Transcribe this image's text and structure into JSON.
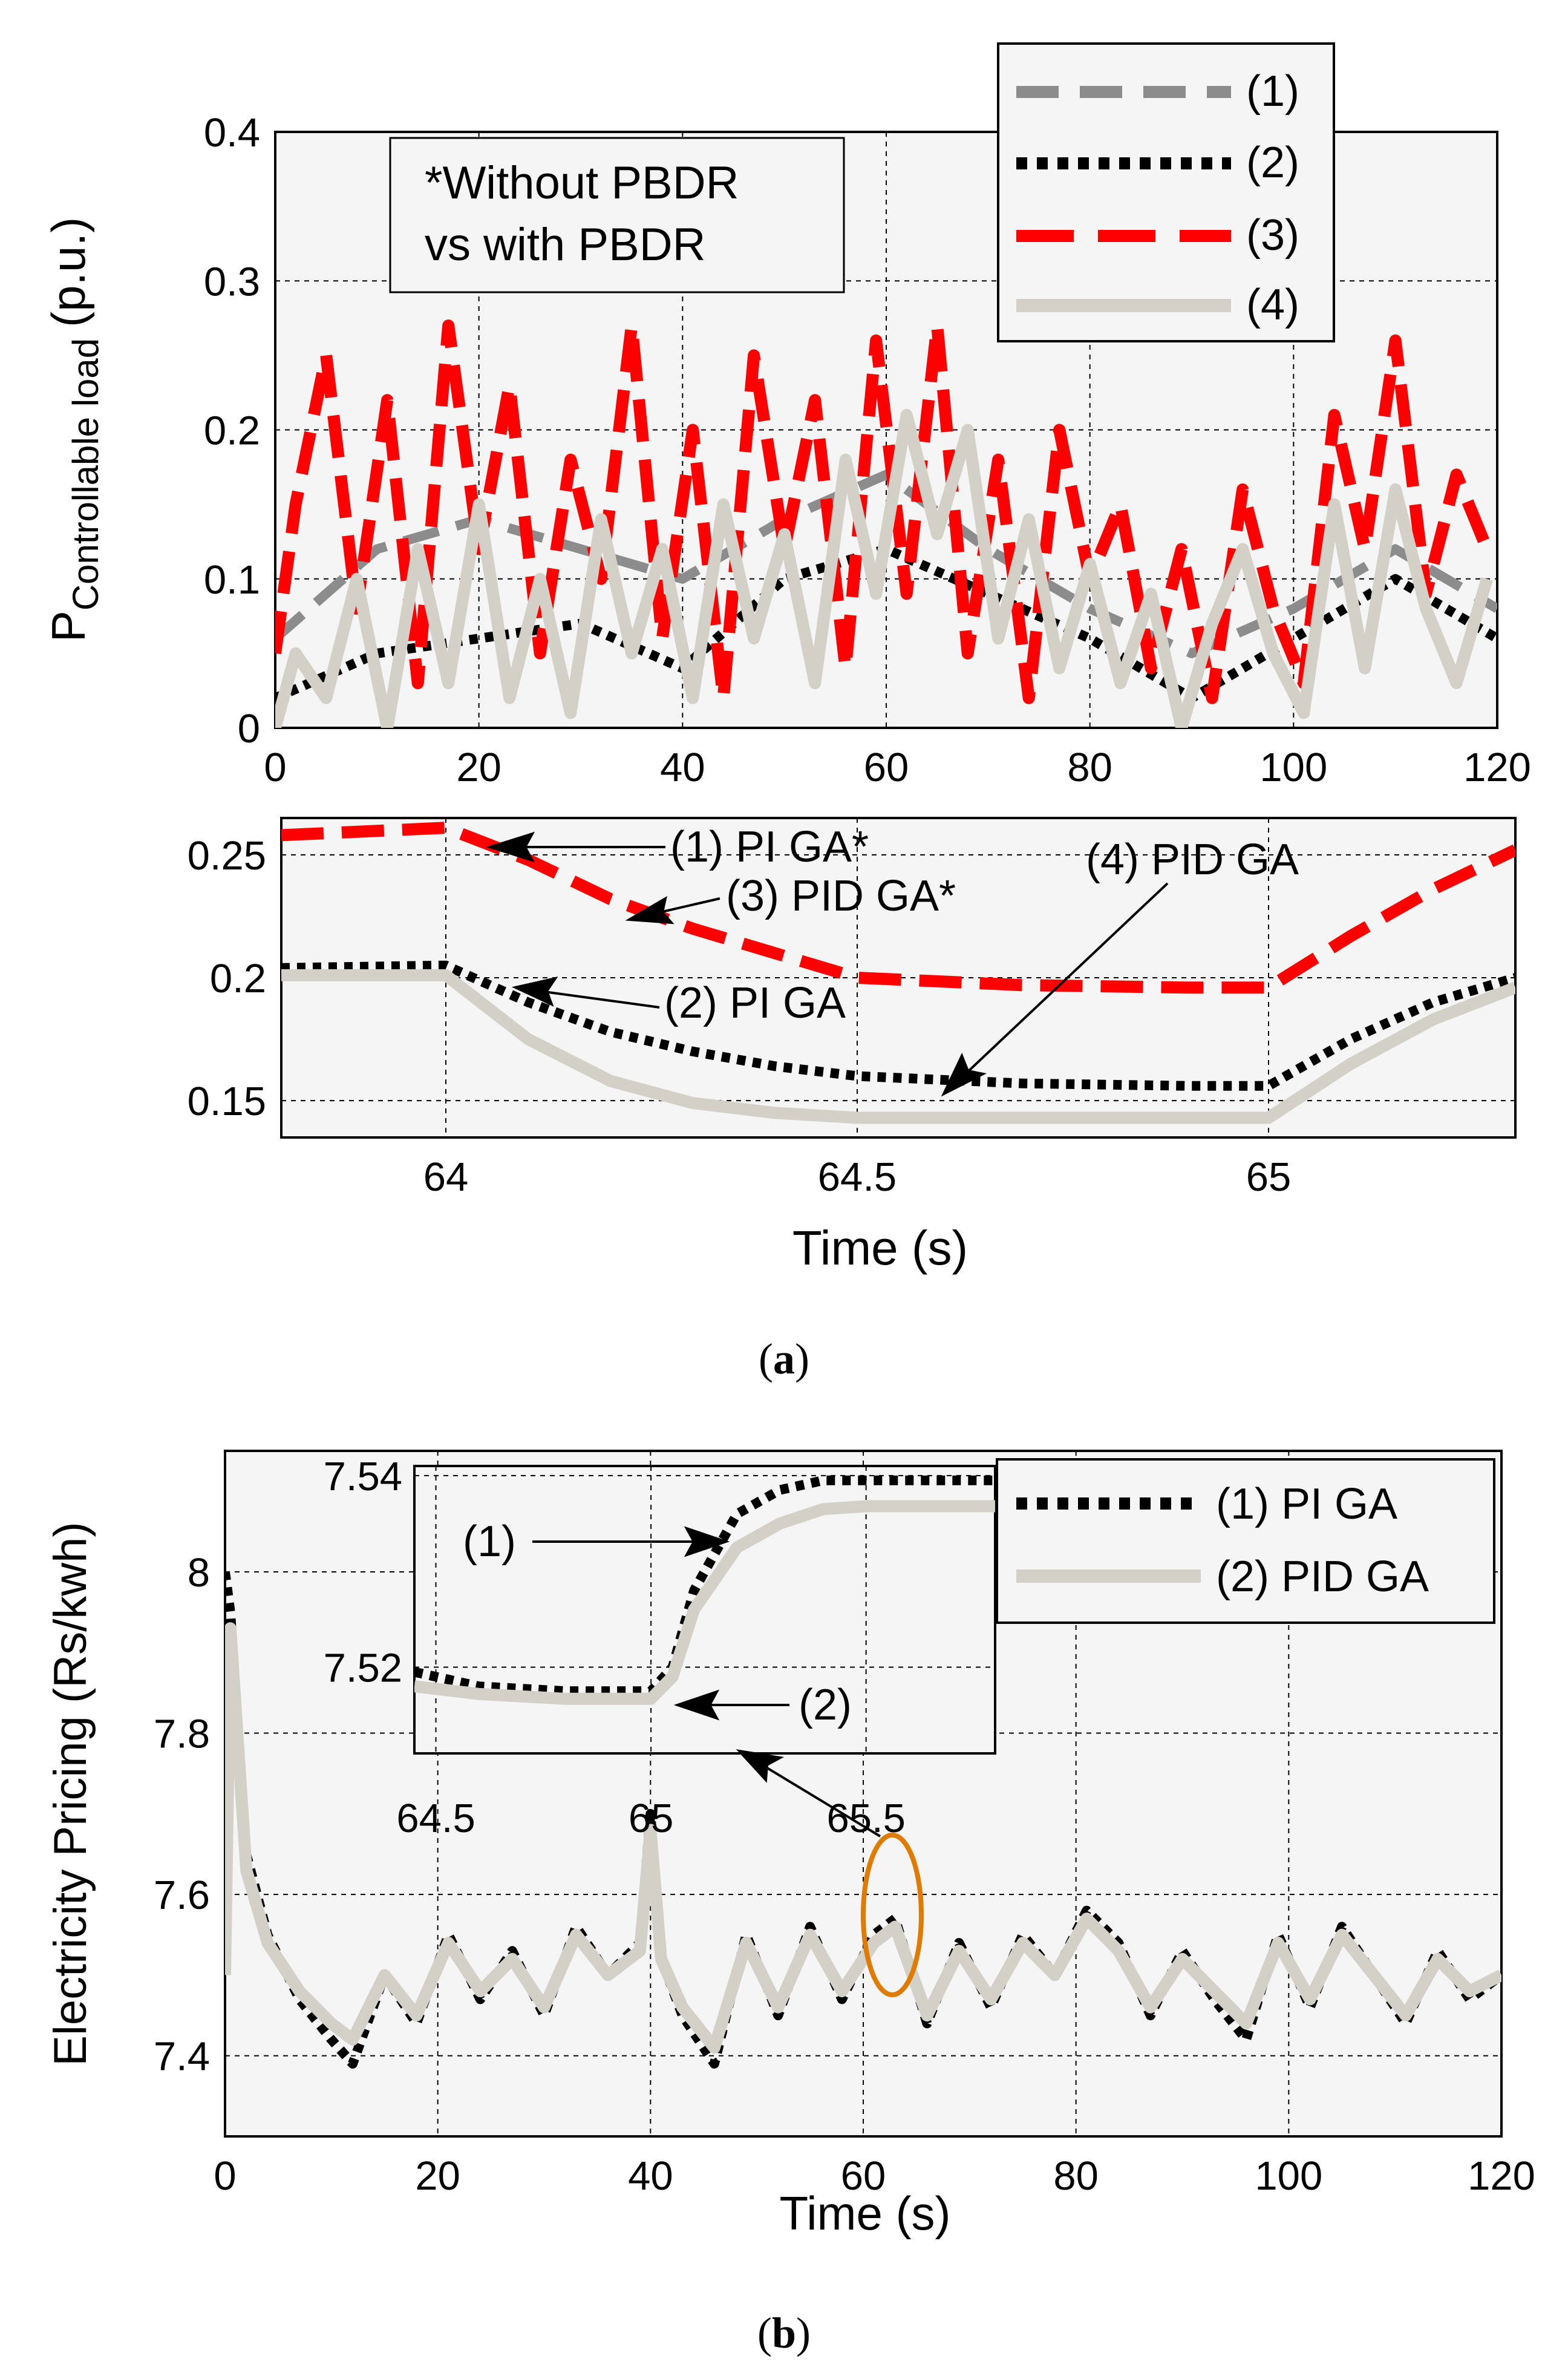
{
  "chart_data": [
    {
      "panel": "a-main",
      "type": "line",
      "title": "",
      "xlabel": "",
      "ylabel_main": "P",
      "ylabel_sub": "Controllable load",
      "ylabel_unit": "(p.u.)",
      "xlim": [
        0,
        120
      ],
      "ylim": [
        0,
        0.4
      ],
      "xticks": [
        "0",
        "20",
        "40",
        "60",
        "80",
        "100",
        "120"
      ],
      "xtick_values": [
        0,
        20,
        40,
        60,
        80,
        100,
        120
      ],
      "yticks": [
        "0",
        "0.1",
        "0.2",
        "0.3",
        "0.4"
      ],
      "ytick_values": [
        0,
        0.1,
        0.2,
        0.3,
        0.4
      ],
      "grid": true,
      "legend_position": "top-right",
      "legend": [
        "(1)",
        "(2)",
        "(3)",
        "(4)"
      ],
      "note_line1": "*Without PBDR",
      "note_line2": "vs with PBDR",
      "series": [
        {
          "name": "(1)",
          "color": "#8c8c8c",
          "style": "dashed",
          "x": [
            0,
            10,
            20,
            30,
            40,
            50,
            60,
            70,
            80,
            90,
            100,
            110,
            120
          ],
          "values": [
            0.06,
            0.12,
            0.14,
            0.12,
            0.1,
            0.14,
            0.17,
            0.12,
            0.08,
            0.05,
            0.08,
            0.12,
            0.08
          ]
        },
        {
          "name": "(2)",
          "color": "#000000",
          "style": "dotted",
          "x": [
            0,
            10,
            20,
            30,
            40,
            50,
            60,
            70,
            80,
            90,
            100,
            110,
            120
          ],
          "values": [
            0.02,
            0.05,
            0.06,
            0.07,
            0.04,
            0.1,
            0.12,
            0.09,
            0.06,
            0.02,
            0.06,
            0.1,
            0.06
          ]
        },
        {
          "name": "(3)",
          "color": "#ff0000",
          "style": "dashed",
          "x": [
            0,
            2,
            5,
            8,
            11,
            14,
            17,
            20,
            23,
            26,
            29,
            32,
            35,
            38,
            41,
            44,
            47,
            50,
            53,
            56,
            59,
            62,
            65,
            68,
            71,
            74,
            77,
            80,
            83,
            86,
            89,
            92,
            95,
            98,
            101,
            104,
            107,
            110,
            113,
            116,
            119
          ],
          "values": [
            0.05,
            0.15,
            0.25,
            0.08,
            0.22,
            0.03,
            0.27,
            0.12,
            0.23,
            0.05,
            0.18,
            0.1,
            0.27,
            0.06,
            0.2,
            0.02,
            0.25,
            0.12,
            0.22,
            0.04,
            0.26,
            0.09,
            0.27,
            0.05,
            0.18,
            0.02,
            0.2,
            0.1,
            0.15,
            0.04,
            0.12,
            0.02,
            0.16,
            0.08,
            0.03,
            0.21,
            0.12,
            0.26,
            0.09,
            0.17,
            0.12
          ]
        },
        {
          "name": "(4)",
          "color": "#d3d0c8",
          "style": "solid",
          "x": [
            0,
            2,
            5,
            8,
            11,
            14,
            17,
            20,
            23,
            26,
            29,
            32,
            35,
            38,
            41,
            44,
            47,
            50,
            53,
            56,
            59,
            62,
            65,
            68,
            71,
            74,
            77,
            80,
            83,
            86,
            89,
            92,
            95,
            98,
            101,
            104,
            107,
            110,
            113,
            116,
            119
          ],
          "values": [
            0.0,
            0.05,
            0.02,
            0.1,
            0.0,
            0.12,
            0.03,
            0.15,
            0.02,
            0.1,
            0.01,
            0.14,
            0.05,
            0.12,
            0.02,
            0.15,
            0.06,
            0.13,
            0.03,
            0.18,
            0.09,
            0.21,
            0.13,
            0.2,
            0.06,
            0.14,
            0.04,
            0.11,
            0.03,
            0.09,
            0.0,
            0.07,
            0.12,
            0.05,
            0.01,
            0.15,
            0.04,
            0.16,
            0.08,
            0.03,
            0.1
          ]
        }
      ]
    },
    {
      "panel": "a-zoom",
      "type": "line",
      "xlabel": "Time (s)",
      "ylabel": "",
      "xlim": [
        63.8,
        65.3
      ],
      "ylim": [
        0.135,
        0.265
      ],
      "xticks": [
        "64",
        "64.5",
        "65"
      ],
      "xtick_values": [
        64,
        64.5,
        65
      ],
      "yticks": [
        "0.15",
        "0.2",
        "0.25"
      ],
      "ytick_values": [
        0.15,
        0.2,
        0.25
      ],
      "grid": true,
      "annotations": [
        "(1) PI GA*",
        "(3) PID GA*",
        "(4) PID GA",
        "(2) PI GA"
      ],
      "series": [
        {
          "name": "(3) PID GA*",
          "color": "#ff0000",
          "style": "dashed",
          "x": [
            63.8,
            64.0,
            64.1,
            64.2,
            64.3,
            64.4,
            64.5,
            64.7,
            64.9,
            65.0,
            65.1,
            65.2,
            65.3
          ],
          "values": [
            0.258,
            0.261,
            0.248,
            0.232,
            0.22,
            0.21,
            0.2,
            0.197,
            0.196,
            0.196,
            0.217,
            0.236,
            0.252
          ]
        },
        {
          "name": "(2) PI GA",
          "color": "#000000",
          "style": "dotted",
          "x": [
            63.8,
            64.0,
            64.1,
            64.2,
            64.3,
            64.4,
            64.5,
            64.7,
            64.9,
            65.0,
            65.1,
            65.2,
            65.3
          ],
          "values": [
            0.204,
            0.205,
            0.19,
            0.178,
            0.17,
            0.164,
            0.16,
            0.157,
            0.156,
            0.156,
            0.175,
            0.19,
            0.2
          ]
        },
        {
          "name": "(4) PID GA",
          "color": "#d3d0c8",
          "style": "solid",
          "x": [
            63.8,
            64.0,
            64.1,
            64.2,
            64.3,
            64.4,
            64.5,
            64.7,
            64.9,
            65.0,
            65.1,
            65.2,
            65.3
          ],
          "values": [
            0.201,
            0.201,
            0.175,
            0.158,
            0.149,
            0.145,
            0.143,
            0.143,
            0.143,
            0.143,
            0.165,
            0.183,
            0.196
          ]
        }
      ]
    },
    {
      "panel": "b-main",
      "type": "line",
      "xlabel": "Time (s)",
      "ylabel": "Electricity Pricing (Rs/kwh)",
      "xlim": [
        0,
        120
      ],
      "ylim": [
        7.3,
        8.15
      ],
      "xticks": [
        "0",
        "20",
        "40",
        "60",
        "80",
        "100",
        "120"
      ],
      "xtick_values": [
        0,
        20,
        40,
        60,
        80,
        100,
        120
      ],
      "yticks": [
        "7.4",
        "7.6",
        "7.8",
        "8"
      ],
      "ytick_values": [
        7.4,
        7.6,
        7.8,
        8.0
      ],
      "grid": true,
      "legend_position": "top-right",
      "legend": [
        "(1) PI GA",
        "(2) PID GA"
      ],
      "series": [
        {
          "name": "(1) PI GA",
          "color": "#000000",
          "style": "dotted",
          "x": [
            0,
            0.5,
            2,
            4,
            7,
            10,
            12,
            15,
            18,
            21,
            24,
            27,
            30,
            33,
            36,
            39,
            40,
            41,
            43,
            46,
            49,
            52,
            55,
            58,
            61,
            63,
            66,
            69,
            72,
            75,
            78,
            81,
            84,
            87,
            90,
            93,
            96,
            99,
            102,
            105,
            108,
            111,
            114,
            117,
            120
          ],
          "values": [
            8.0,
            7.95,
            7.65,
            7.55,
            7.47,
            7.42,
            7.39,
            7.5,
            7.44,
            7.55,
            7.47,
            7.53,
            7.45,
            7.56,
            7.5,
            7.54,
            7.7,
            7.52,
            7.45,
            7.39,
            7.55,
            7.45,
            7.56,
            7.47,
            7.55,
            7.57,
            7.44,
            7.54,
            7.46,
            7.55,
            7.5,
            7.58,
            7.54,
            7.45,
            7.53,
            7.47,
            7.42,
            7.55,
            7.46,
            7.56,
            7.5,
            7.44,
            7.53,
            7.47,
            7.5
          ]
        },
        {
          "name": "(2) PID GA",
          "color": "#d3d0c8",
          "style": "solid",
          "x": [
            0,
            0.5,
            2,
            4,
            7,
            10,
            12,
            15,
            18,
            21,
            24,
            27,
            30,
            33,
            36,
            39,
            40,
            41,
            43,
            46,
            49,
            52,
            55,
            58,
            61,
            63,
            66,
            69,
            72,
            75,
            78,
            81,
            84,
            87,
            90,
            93,
            96,
            99,
            102,
            105,
            108,
            111,
            114,
            117,
            120
          ],
          "values": [
            7.5,
            7.93,
            7.63,
            7.54,
            7.48,
            7.44,
            7.42,
            7.5,
            7.45,
            7.54,
            7.48,
            7.52,
            7.46,
            7.55,
            7.5,
            7.53,
            7.68,
            7.52,
            7.46,
            7.41,
            7.54,
            7.46,
            7.55,
            7.48,
            7.54,
            7.56,
            7.45,
            7.53,
            7.47,
            7.54,
            7.5,
            7.57,
            7.53,
            7.46,
            7.52,
            7.48,
            7.44,
            7.54,
            7.47,
            7.55,
            7.5,
            7.45,
            7.52,
            7.48,
            7.5
          ]
        }
      ]
    },
    {
      "panel": "b-inset",
      "type": "line",
      "xlim": [
        64.45,
        65.8
      ],
      "ylim": [
        7.511,
        7.541
      ],
      "xticks": [
        "64.5",
        "65",
        "65.5"
      ],
      "xtick_values": [
        64.5,
        65,
        65.5
      ],
      "yticks": [
        "7.52",
        "7.54"
      ],
      "ytick_values": [
        7.52,
        7.54
      ],
      "grid": true,
      "annotations": [
        "(1)",
        "(2)"
      ],
      "series": [
        {
          "name": "(1) PI GA",
          "color": "#000000",
          "style": "dotted",
          "x": [
            64.45,
            64.6,
            64.8,
            65.0,
            65.05,
            65.1,
            65.2,
            65.3,
            65.4,
            65.5,
            65.6,
            65.8
          ],
          "values": [
            7.5195,
            7.518,
            7.5175,
            7.5175,
            7.52,
            7.528,
            7.536,
            7.5385,
            7.5395,
            7.5395,
            7.5395,
            7.5395
          ]
        },
        {
          "name": "(2) PID GA",
          "color": "#d3d0c8",
          "style": "solid",
          "x": [
            64.45,
            64.6,
            64.8,
            65.0,
            65.05,
            65.1,
            65.2,
            65.3,
            65.4,
            65.5,
            65.6,
            65.8
          ],
          "values": [
            7.518,
            7.5172,
            7.5167,
            7.5167,
            7.519,
            7.526,
            7.5325,
            7.535,
            7.5365,
            7.5368,
            7.5368,
            7.5368
          ]
        }
      ]
    }
  ],
  "captions": {
    "a_open": "(",
    "a_letter": "a",
    "a_close": ")",
    "b_open": "(",
    "b_letter": "b",
    "b_close": ")"
  }
}
